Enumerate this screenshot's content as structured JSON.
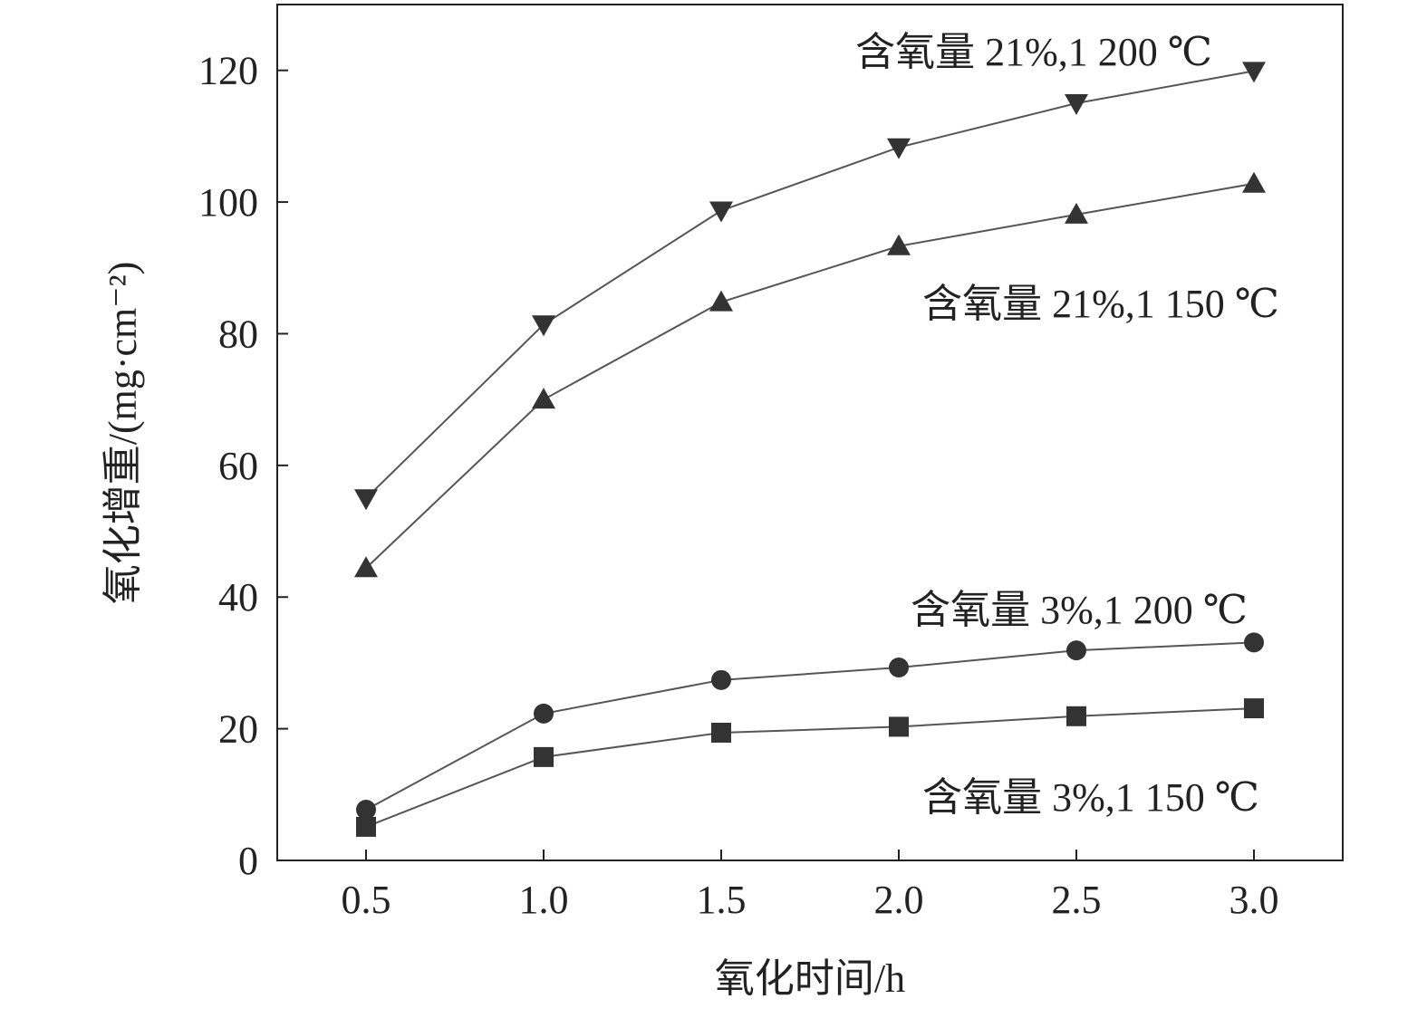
{
  "chart_data": {
    "type": "line",
    "title": "",
    "xlabel": "氧化时间/h",
    "ylabel": "氧化增重/(mg·cm⁻²)",
    "xlim": [
      0.25,
      3.25
    ],
    "ylim": [
      0,
      130
    ],
    "x": [
      0.5,
      1.0,
      1.5,
      2.0,
      2.5,
      3.0
    ],
    "xticks": [
      "0.5",
      "1.0",
      "1.5",
      "2.0",
      "2.5",
      "3.0"
    ],
    "yticks": [
      "0",
      "20",
      "40",
      "60",
      "80",
      "100",
      "120"
    ],
    "grid": false,
    "series": [
      {
        "name": "含氧量 21%,1 200 ℃",
        "marker": "triangle-down",
        "values": [
          55.0,
          81.4,
          98.7,
          108.3,
          115.0,
          119.9
        ]
      },
      {
        "name": "含氧量 21%,1 150 ℃",
        "marker": "triangle-up",
        "values": [
          44.4,
          70.0,
          84.8,
          93.3,
          98.1,
          102.8
        ]
      },
      {
        "name": "含氧量 3%,1 200 ℃",
        "marker": "circle",
        "values": [
          7.7,
          22.3,
          27.4,
          29.3,
          31.9,
          33.1
        ]
      },
      {
        "name": "含氧量 3%,1 150 ℃",
        "marker": "square",
        "values": [
          5.1,
          15.7,
          19.4,
          20.3,
          21.9,
          23.1
        ]
      }
    ],
    "colors": {
      "line": "#555555",
      "marker": "#333333",
      "axis": "#222222"
    }
  }
}
